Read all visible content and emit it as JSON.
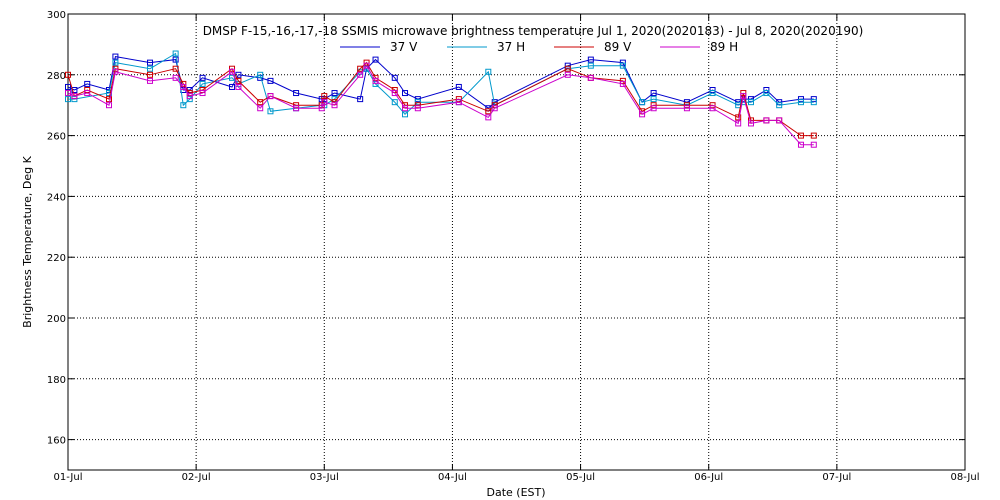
{
  "chart_data": {
    "type": "line",
    "title": "DMSP F-15,-16,-17,-18 SSMIS microwave brightness temperature Jul  1, 2020(2020183) - Jul  8, 2020(2020190)",
    "xlabel": "Date (EST)",
    "ylabel": "Brightness Temperature, Deg K",
    "xlim": [
      0,
      7
    ],
    "ylim": [
      150,
      300
    ],
    "x_tick_values": [
      0,
      1,
      2,
      3,
      4,
      5,
      6,
      7
    ],
    "x_tick_labels": [
      "01-Jul",
      "02-Jul",
      "03-Jul",
      "04-Jul",
      "05-Jul",
      "06-Jul",
      "07-Jul",
      "08-Jul"
    ],
    "y_tick_values": [
      160,
      180,
      200,
      220,
      240,
      260,
      280,
      300
    ],
    "y_tick_labels": [
      "160",
      "180",
      "200",
      "220",
      "240",
      "260",
      "280",
      "300"
    ],
    "grid": true,
    "legend_position": "top-center",
    "series": [
      {
        "name": "37 V",
        "color": "#0000cc",
        "x": [
          0.0,
          0.05,
          0.15,
          0.32,
          0.37,
          0.64,
          0.84,
          0.9,
          0.95,
          1.05,
          1.28,
          1.33,
          1.5,
          1.58,
          1.78,
          1.98,
          2.0,
          2.08,
          2.28,
          2.33,
          2.4,
          2.55,
          2.63,
          2.73,
          3.05,
          3.28,
          3.33,
          3.9,
          4.08,
          4.33,
          4.48,
          4.57,
          4.83,
          5.03,
          5.23,
          5.27,
          5.33,
          5.45,
          5.55,
          5.72,
          5.82
        ],
        "y": [
          276,
          275,
          277,
          275,
          286,
          284,
          285,
          275,
          275,
          279,
          276,
          280,
          279,
          278,
          274,
          272,
          272,
          274,
          272,
          282,
          285,
          279,
          274,
          272,
          276,
          269,
          271,
          283,
          285,
          284,
          271,
          274,
          271,
          275,
          271,
          272,
          272,
          275,
          271,
          272,
          272
        ]
      },
      {
        "name": "37 H",
        "color": "#0099cc",
        "x": [
          0.0,
          0.05,
          0.32,
          0.37,
          0.64,
          0.84,
          0.9,
          0.95,
          1.05,
          1.28,
          1.33,
          1.5,
          1.58,
          1.78,
          1.98,
          2.0,
          2.08,
          2.28,
          2.33,
          2.4,
          2.55,
          2.63,
          2.73,
          3.05,
          3.28,
          3.33,
          3.9,
          4.08,
          4.33,
          4.48,
          4.57,
          4.83,
          5.03,
          5.23,
          5.27,
          5.33,
          5.45,
          5.55,
          5.72,
          5.82
        ],
        "y": [
          272,
          272,
          274,
          284,
          282,
          287,
          270,
          272,
          277,
          279,
          277,
          280,
          268,
          269,
          270,
          270,
          272,
          281,
          282,
          277,
          271,
          267,
          271,
          271,
          281,
          270,
          282,
          283,
          283,
          271,
          272,
          270,
          274,
          270,
          271,
          271,
          274,
          270,
          271,
          271
        ]
      },
      {
        "name": "89 V",
        "color": "#cc0000",
        "x": [
          0.0,
          0.05,
          0.15,
          0.32,
          0.37,
          0.64,
          0.84,
          0.9,
          0.95,
          1.05,
          1.28,
          1.33,
          1.5,
          1.58,
          1.78,
          1.98,
          2.0,
          2.08,
          2.28,
          2.33,
          2.4,
          2.55,
          2.63,
          2.73,
          3.05,
          3.28,
          3.33,
          3.9,
          4.08,
          4.33,
          4.48,
          4.57,
          4.83,
          5.03,
          5.23,
          5.27,
          5.33,
          5.45,
          5.55,
          5.72,
          5.82
        ],
        "y": [
          280,
          273,
          275,
          272,
          282,
          280,
          282,
          277,
          274,
          275,
          282,
          278,
          271,
          273,
          270,
          270,
          273,
          271,
          282,
          284,
          279,
          275,
          270,
          270,
          272,
          268,
          270,
          282,
          279,
          278,
          268,
          270,
          270,
          270,
          266,
          274,
          265,
          265,
          265,
          260,
          260
        ]
      },
      {
        "name": "89 H",
        "color": "#cc00cc",
        "x": [
          0.0,
          0.05,
          0.15,
          0.32,
          0.37,
          0.64,
          0.84,
          0.9,
          0.95,
          1.05,
          1.28,
          1.33,
          1.5,
          1.58,
          1.78,
          1.98,
          2.0,
          2.08,
          2.28,
          2.33,
          2.4,
          2.55,
          2.63,
          2.73,
          3.05,
          3.28,
          3.33,
          3.9,
          4.08,
          4.33,
          4.48,
          4.57,
          4.83,
          5.03,
          5.23,
          5.27,
          5.33,
          5.45,
          5.55,
          5.72,
          5.82
        ],
        "y": [
          274,
          273,
          274,
          270,
          281,
          278,
          279,
          276,
          273,
          274,
          281,
          276,
          269,
          273,
          269,
          269,
          271,
          270,
          280,
          283,
          278,
          274,
          269,
          269,
          271,
          266,
          269,
          280,
          279,
          277,
          267,
          269,
          269,
          269,
          264,
          273,
          264,
          265,
          265,
          257,
          257
        ]
      }
    ]
  }
}
